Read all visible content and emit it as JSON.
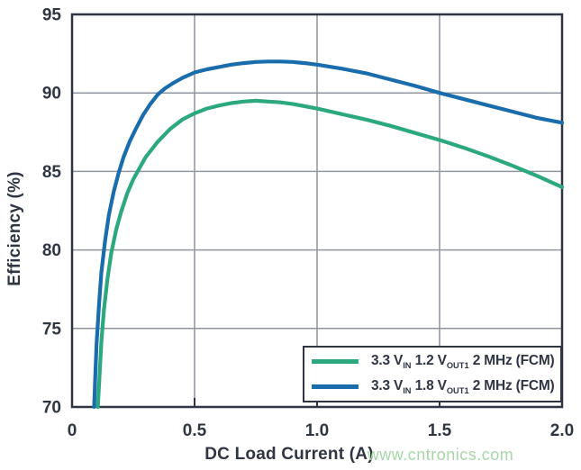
{
  "page": {
    "watermark": "www.cntronics.com",
    "watermark_color": "#a6d7a6"
  },
  "chart_data": {
    "type": "line",
    "title": "",
    "xlabel": "DC Load Current (A)",
    "ylabel": "Efficiency (%)",
    "xlim": [
      0,
      2
    ],
    "ylim": [
      70,
      95
    ],
    "grid": true,
    "legend_position": "bottom-right",
    "xticks": {
      "values": [
        0,
        0.5,
        1,
        1.5,
        2
      ],
      "labels": [
        "0",
        "0.5",
        "1.0",
        "1.5",
        "2.0"
      ]
    },
    "yticks": {
      "values": [
        70,
        75,
        80,
        85,
        90,
        95
      ],
      "labels": [
        "70",
        "75",
        "80",
        "85",
        "90",
        "95"
      ]
    },
    "colors": {
      "axis": "#2f3542",
      "grid": "#8f949e"
    },
    "series": [
      {
        "name": "3.3 VIN 1.2 VOUT1 2 MHz (FCM)",
        "color": "#2ca87f",
        "label_parts": [
          {
            "t": "3.3 V"
          },
          {
            "t": "IN",
            "sub": true
          },
          {
            "t": " 1.2 V"
          },
          {
            "t": "OUT1",
            "sub": true
          },
          {
            "t": " 2 MHz (FCM)"
          }
        ],
        "points": [
          [
            0.105,
            70.0
          ],
          [
            0.112,
            72.0
          ],
          [
            0.12,
            74.2
          ],
          [
            0.13,
            76.2
          ],
          [
            0.145,
            78.2
          ],
          [
            0.16,
            79.8
          ],
          [
            0.18,
            81.3
          ],
          [
            0.2,
            82.4
          ],
          [
            0.225,
            83.6
          ],
          [
            0.25,
            84.5
          ],
          [
            0.275,
            85.2
          ],
          [
            0.3,
            85.9
          ],
          [
            0.325,
            86.4
          ],
          [
            0.35,
            86.9
          ],
          [
            0.375,
            87.3
          ],
          [
            0.4,
            87.7
          ],
          [
            0.45,
            88.3
          ],
          [
            0.5,
            88.7
          ],
          [
            0.55,
            89.0
          ],
          [
            0.6,
            89.2
          ],
          [
            0.65,
            89.35
          ],
          [
            0.7,
            89.45
          ],
          [
            0.75,
            89.5
          ],
          [
            0.8,
            89.45
          ],
          [
            0.85,
            89.4
          ],
          [
            0.9,
            89.3
          ],
          [
            0.95,
            89.15
          ],
          [
            1.0,
            89.0
          ],
          [
            1.1,
            88.65
          ],
          [
            1.2,
            88.3
          ],
          [
            1.3,
            87.9
          ],
          [
            1.4,
            87.45
          ],
          [
            1.5,
            87.0
          ],
          [
            1.6,
            86.5
          ],
          [
            1.7,
            85.95
          ],
          [
            1.8,
            85.35
          ],
          [
            1.9,
            84.7
          ],
          [
            2.0,
            84.0
          ]
        ]
      },
      {
        "name": "3.3 VIN 1.8 VOUT1 2 MHz (FCM)",
        "color": "#1a6dad",
        "label_parts": [
          {
            "t": "3.3 V"
          },
          {
            "t": "IN",
            "sub": true
          },
          {
            "t": " 1.8 V"
          },
          {
            "t": "OUT1",
            "sub": true
          },
          {
            "t": " 2 MHz (FCM)"
          }
        ],
        "points": [
          [
            0.09,
            70.0
          ],
          [
            0.095,
            72.0
          ],
          [
            0.1,
            74.0
          ],
          [
            0.11,
            76.5
          ],
          [
            0.12,
            78.6
          ],
          [
            0.135,
            80.6
          ],
          [
            0.15,
            82.2
          ],
          [
            0.17,
            83.7
          ],
          [
            0.19,
            84.9
          ],
          [
            0.21,
            85.9
          ],
          [
            0.235,
            86.9
          ],
          [
            0.26,
            87.7
          ],
          [
            0.29,
            88.6
          ],
          [
            0.32,
            89.3
          ],
          [
            0.35,
            89.9
          ],
          [
            0.38,
            90.3
          ],
          [
            0.41,
            90.6
          ],
          [
            0.45,
            90.95
          ],
          [
            0.5,
            91.3
          ],
          [
            0.55,
            91.5
          ],
          [
            0.6,
            91.65
          ],
          [
            0.65,
            91.8
          ],
          [
            0.7,
            91.9
          ],
          [
            0.75,
            91.97
          ],
          [
            0.8,
            92.0
          ],
          [
            0.85,
            92.0
          ],
          [
            0.9,
            91.97
          ],
          [
            0.95,
            91.9
          ],
          [
            1.0,
            91.8
          ],
          [
            1.1,
            91.55
          ],
          [
            1.2,
            91.25
          ],
          [
            1.3,
            90.85
          ],
          [
            1.4,
            90.45
          ],
          [
            1.5,
            90.0
          ],
          [
            1.6,
            89.6
          ],
          [
            1.7,
            89.2
          ],
          [
            1.8,
            88.8
          ],
          [
            1.9,
            88.4
          ],
          [
            2.0,
            88.1
          ]
        ]
      }
    ]
  }
}
